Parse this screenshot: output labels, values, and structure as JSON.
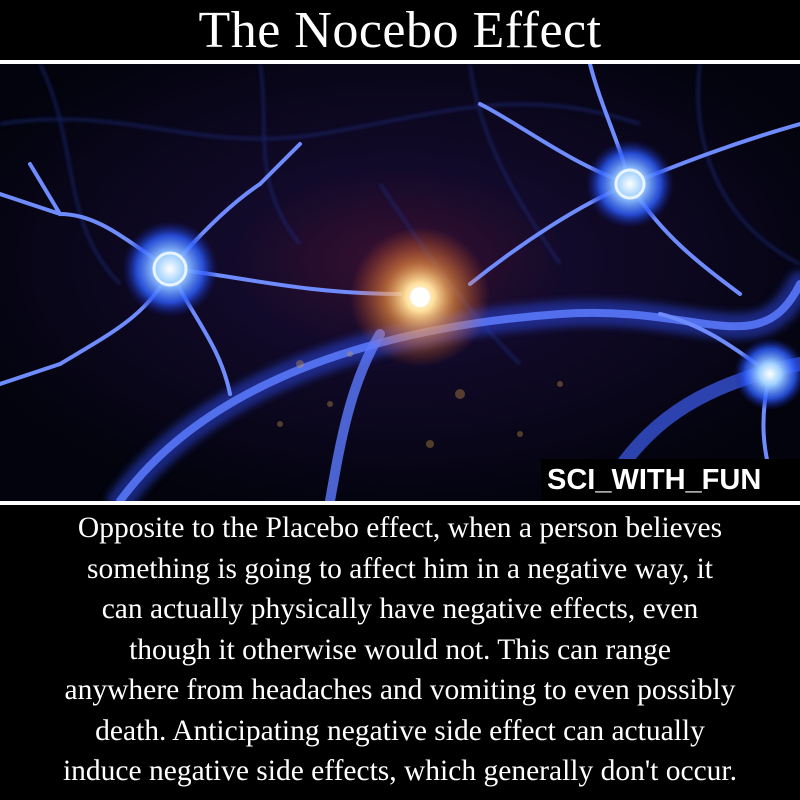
{
  "title": "The Nocebo Effect",
  "watermark": "SCI_WITH_FUN",
  "caption_lines": [
    "Opposite to the Placebo effect, when a person believes",
    "something is going to affect him in a negative way, it",
    "can actually physically have negative effects, even",
    "though it otherwise would not. This can range",
    "anywhere from headaches and vomiting to even possibly",
    "death. Anticipating negative side effect can actually",
    "induce negative side effects, which generally don't occur."
  ],
  "colors": {
    "background": "#000000",
    "text": "#ffffff",
    "neuron_blue": "#3a5cff",
    "neuron_glow": "#8fb4ff",
    "spark": "#ffd27a"
  }
}
